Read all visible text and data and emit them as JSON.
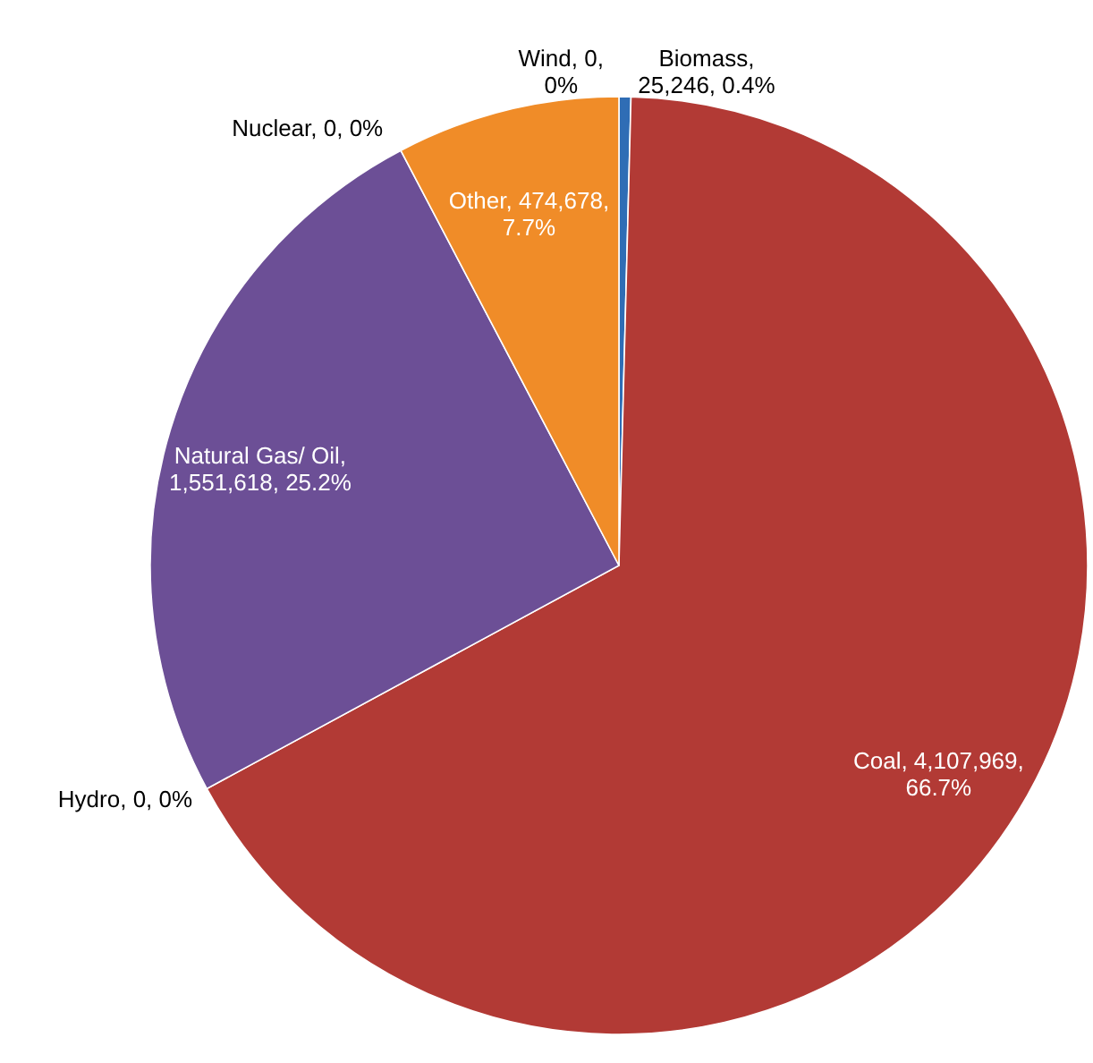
{
  "chart_data": {
    "type": "pie",
    "categories": [
      "Biomass",
      "Coal",
      "Hydro",
      "Natural Gas/ Oil",
      "Nuclear",
      "Other",
      "Wind"
    ],
    "values": [
      25246,
      4107969,
      0,
      1551618,
      0,
      474678,
      0
    ],
    "colors": [
      "#2f6db5",
      "#b23a35",
      null,
      "#6c4f96",
      null,
      "#f08c28",
      null
    ],
    "value_labels": [
      ",\n25,246, 0.4%",
      ", 4,107,969,\n66.7%",
      ", 0, 0%",
      ",\n1,551,618, 25.2%",
      ", 0, 0%",
      ", 474,678,\n7.7%",
      ", 0,\n0%"
    ]
  }
}
